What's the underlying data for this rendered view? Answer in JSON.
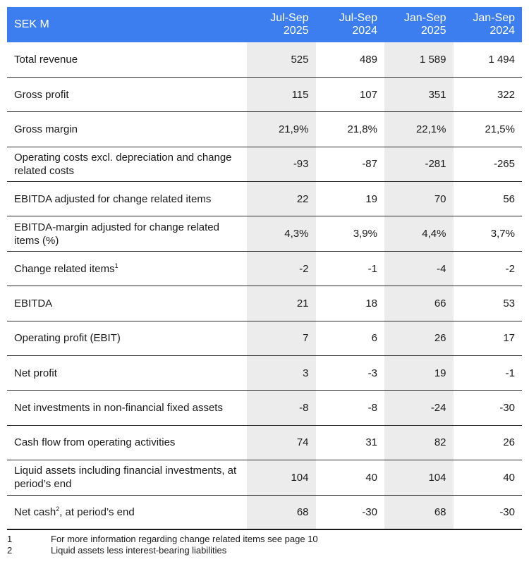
{
  "table": {
    "unit_label": "SEK M",
    "columns": [
      {
        "line1": "Jul-Sep",
        "line2": "2025"
      },
      {
        "line1": "Jul-Sep",
        "line2": "2024"
      },
      {
        "line1": "Jan-Sep",
        "line2": "2025"
      },
      {
        "line1": "Jan-Sep",
        "line2": "2024"
      }
    ],
    "rows": [
      {
        "label": "Total revenue",
        "sup": "",
        "values": [
          "525",
          "489",
          "1 589",
          "1 494"
        ]
      },
      {
        "label": "Gross profit",
        "sup": "",
        "values": [
          "115",
          "107",
          "351",
          "322"
        ]
      },
      {
        "label": "Gross margin",
        "sup": "",
        "values": [
          "21,9%",
          "21,8%",
          "22,1%",
          "21,5%"
        ]
      },
      {
        "label": "Operating costs excl. depreciation and change related costs",
        "sup": "",
        "values": [
          "-93",
          "-87",
          "-281",
          "-265"
        ]
      },
      {
        "label": "EBITDA adjusted for change related items",
        "sup": "",
        "values": [
          "22",
          "19",
          "70",
          "56"
        ]
      },
      {
        "label": "EBITDA-margin adjusted for change related items (%)",
        "sup": "",
        "values": [
          "4,3%",
          "3,9%",
          "4,4%",
          "3,7%"
        ]
      },
      {
        "label": "Change related items",
        "sup": "1",
        "values": [
          "-2",
          "-1",
          "-4",
          "-2"
        ]
      },
      {
        "label": "EBITDA",
        "sup": "",
        "values": [
          "21",
          "18",
          "66",
          "53"
        ]
      },
      {
        "label": "Operating profit (EBIT)",
        "sup": "",
        "values": [
          "7",
          "6",
          "26",
          "17"
        ]
      },
      {
        "label": "Net profit",
        "sup": "",
        "values": [
          "3",
          "-3",
          "19",
          "-1"
        ]
      },
      {
        "label": "Net investments in non-financial fixed assets",
        "sup": "",
        "values": [
          "-8",
          "-8",
          "-24",
          "-30"
        ]
      },
      {
        "label": "Cash flow from operating activities",
        "sup": "",
        "values": [
          "74",
          "31",
          "82",
          "26"
        ]
      },
      {
        "label": "Liquid assets including financial investments, at period’s end",
        "sup": "",
        "values": [
          "104",
          "40",
          "104",
          "40"
        ]
      },
      {
        "label": "Net cash",
        "sup": "2",
        "label_suffix": ", at period’s end",
        "values": [
          "68",
          "-30",
          "68",
          "-30"
        ]
      }
    ]
  },
  "footnotes": [
    {
      "num": "1",
      "text": "For more information regarding change related items see page 10"
    },
    {
      "num": "2",
      "text": "Liquid assets less interest-bearing liabilities"
    }
  ],
  "colors": {
    "header_bg": "#3c7ef0",
    "header_text": "#ffffff",
    "shade": "#ececec"
  }
}
